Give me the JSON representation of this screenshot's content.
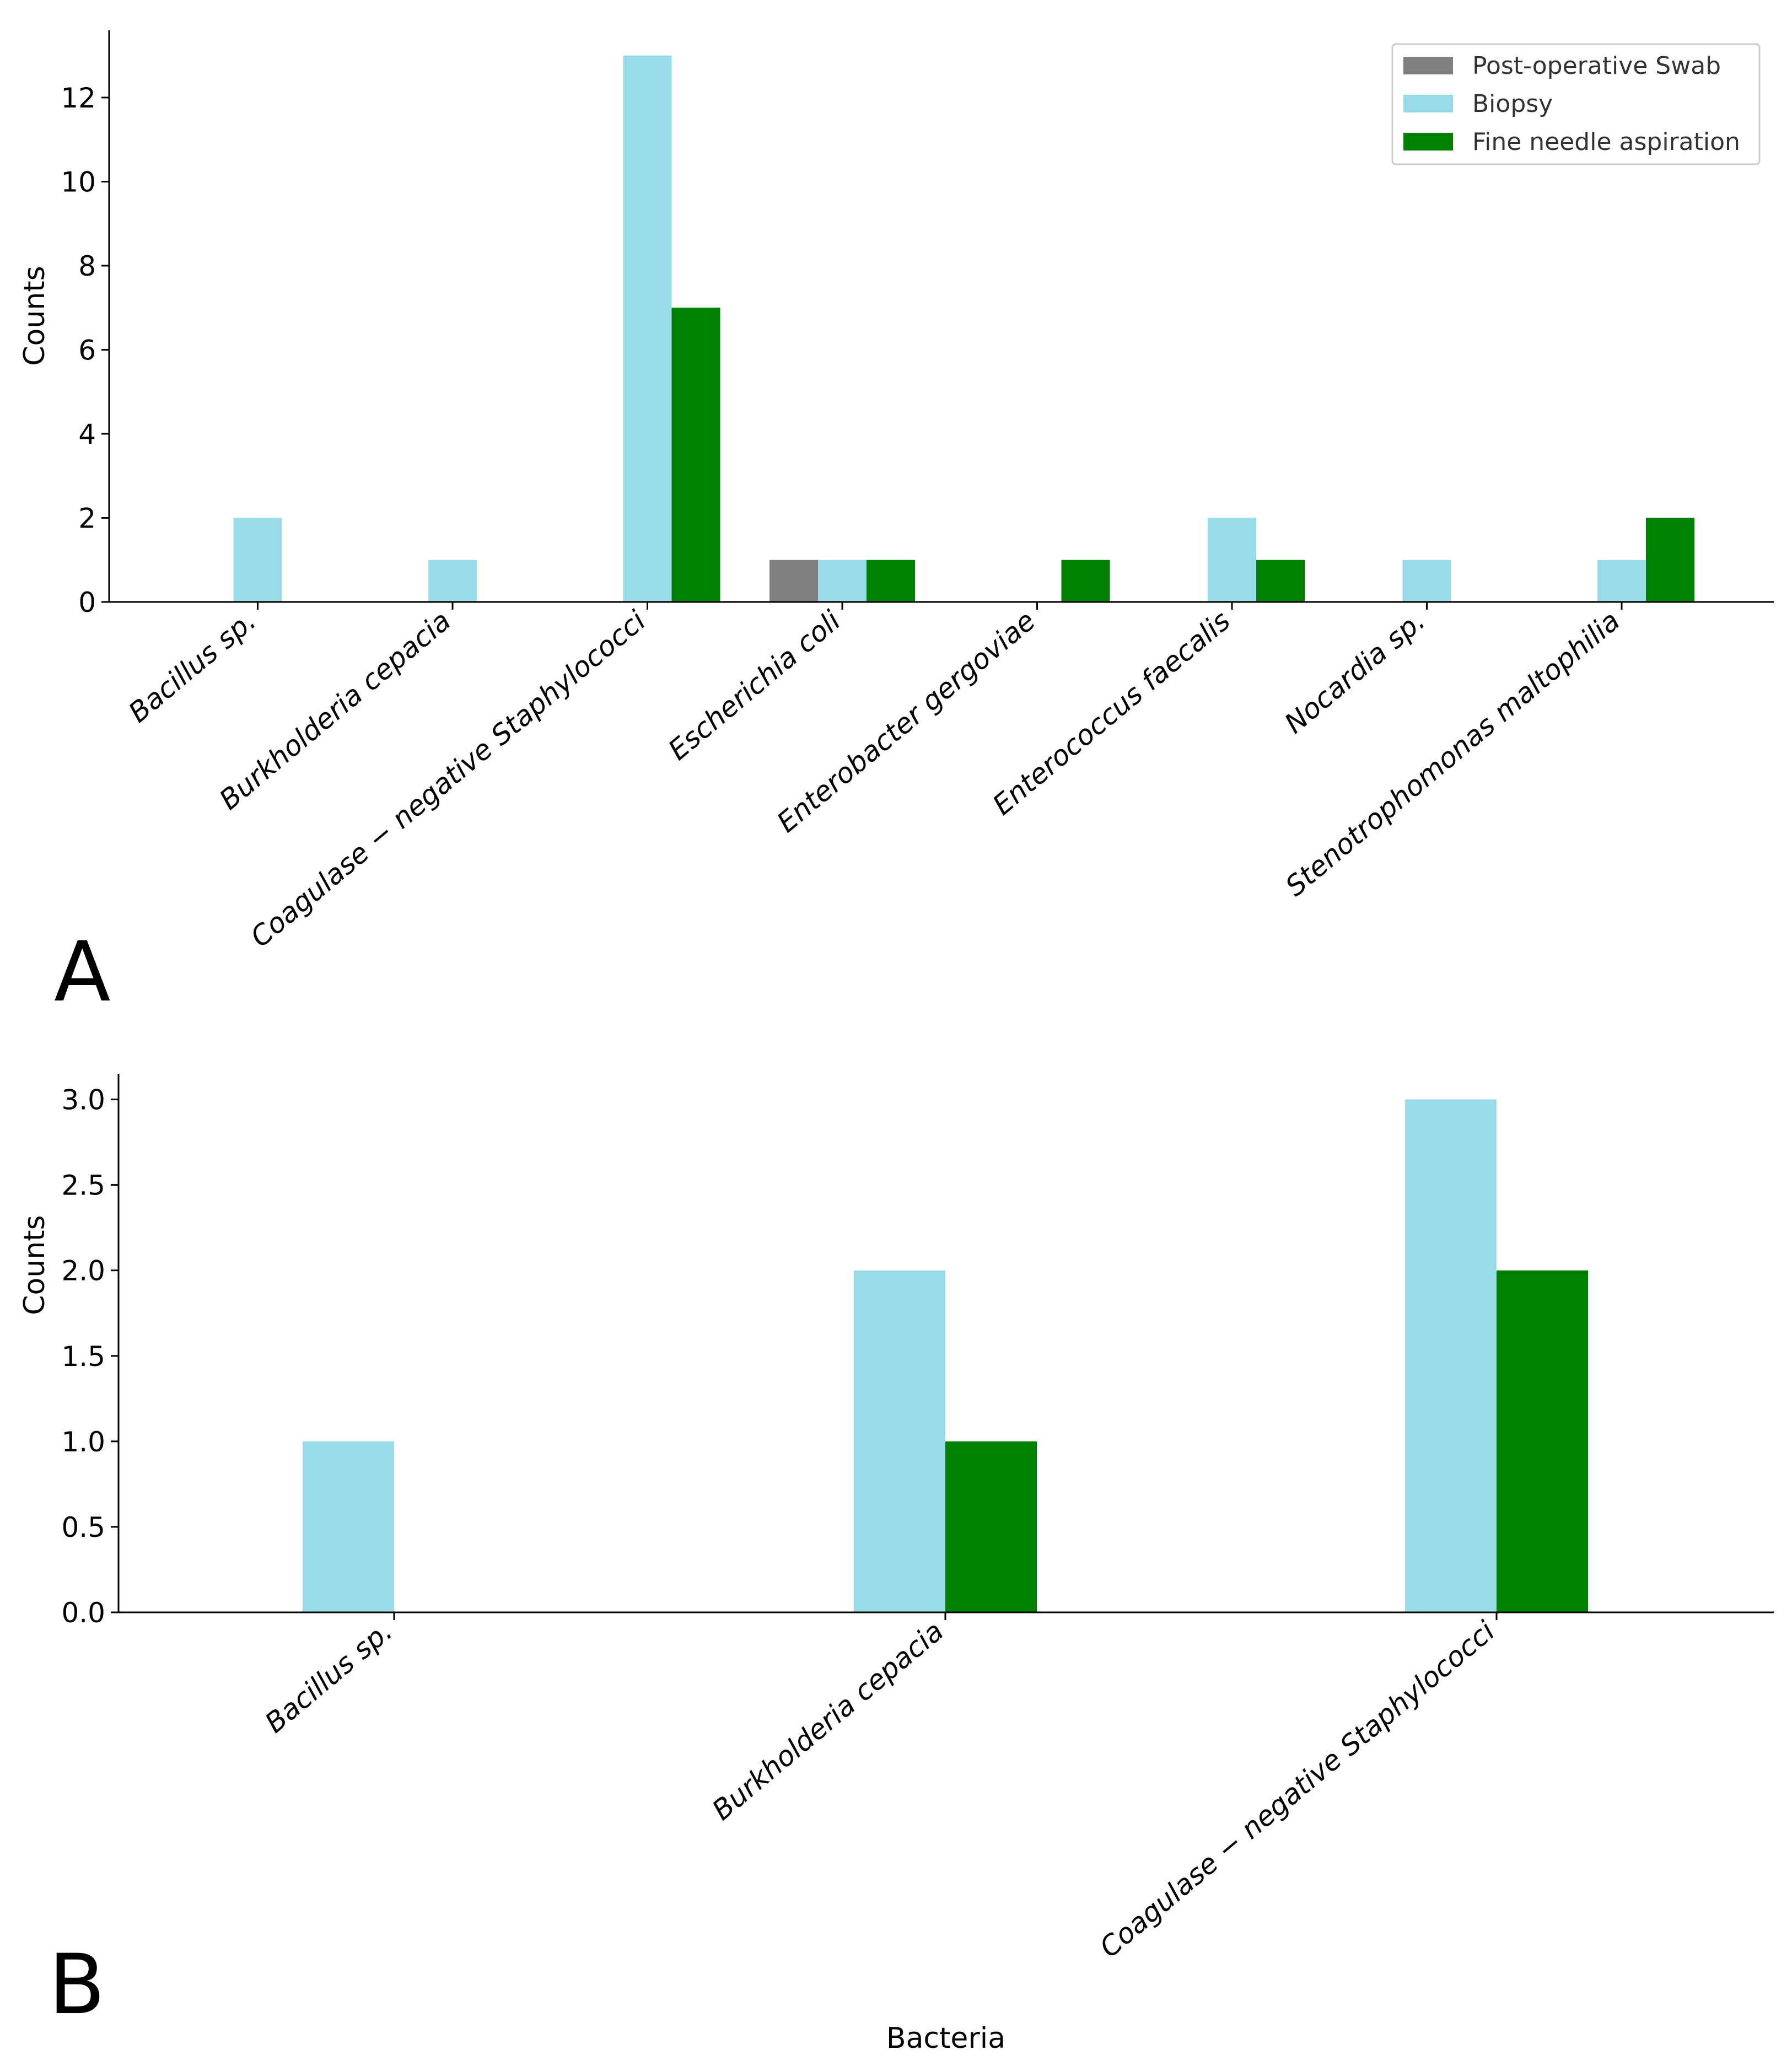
{
  "panel_labels": [
    "A",
    "B"
  ],
  "legend": {
    "entries": [
      {
        "name": "Post-operative Swab",
        "color": "#808080"
      },
      {
        "name": "Biopsy",
        "color": "#99DBE6"
      },
      {
        "name": "Fine needle aspiration",
        "color": "#008000"
      }
    ]
  },
  "chart_data": [
    {
      "type": "bar",
      "panel": "A",
      "xlabel": "",
      "ylabel": "Counts",
      "ylim": [
        0,
        13.6
      ],
      "yticks": [
        0,
        2,
        4,
        6,
        8,
        10,
        12
      ],
      "ytick_labels": [
        "0",
        "2",
        "4",
        "6",
        "8",
        "10",
        "12"
      ],
      "categories": [
        "Bacillus sp.",
        "Burkholderia cepacia",
        "Coagulase − negative Staphylococci",
        "Escherichia coli",
        "Enterobacter gergoviae",
        "Enterococcus faecalis",
        "Nocardia sp.",
        "Stenotrophomonas maltophilia"
      ],
      "series": [
        {
          "name": "Post-operative Swab",
          "color": "#808080",
          "values": [
            0,
            0,
            0,
            1,
            0,
            0,
            0,
            0
          ]
        },
        {
          "name": "Biopsy",
          "color": "#99DBE6",
          "values": [
            2,
            1,
            13,
            1,
            0,
            2,
            1,
            1
          ]
        },
        {
          "name": "Fine needle aspiration",
          "color": "#008000",
          "values": [
            0,
            0,
            7,
            1,
            1,
            1,
            0,
            2
          ]
        }
      ],
      "legend_position": "top-right"
    },
    {
      "type": "bar",
      "panel": "B",
      "xlabel": "Bacteria",
      "ylabel": "Counts",
      "ylim": [
        0,
        3.15
      ],
      "yticks": [
        0,
        0.5,
        1,
        1.5,
        2,
        2.5,
        3
      ],
      "ytick_labels": [
        "0.0",
        "0.5",
        "1.0",
        "1.5",
        "2.0",
        "2.5",
        "3.0"
      ],
      "categories": [
        "Bacillus sp.",
        "Burkholderia cepacia",
        "Coagulase − negative Staphylococci"
      ],
      "series": [
        {
          "name": "Post-operative Swab",
          "color": "#808080",
          "values": [
            0,
            0,
            0
          ]
        },
        {
          "name": "Biopsy",
          "color": "#99DBE6",
          "values": [
            1,
            2,
            3
          ]
        },
        {
          "name": "Fine needle aspiration",
          "color": "#008000",
          "values": [
            0,
            1,
            2
          ]
        }
      ]
    }
  ]
}
